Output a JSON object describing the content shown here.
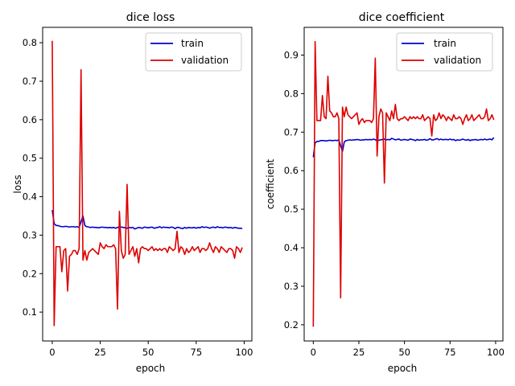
{
  "chart_data": [
    {
      "type": "line",
      "title": "dice loss",
      "xlabel": "epoch",
      "ylabel": "loss",
      "xlim": [
        -5,
        104
      ],
      "ylim": [
        0.025,
        0.84
      ],
      "xticks": [
        0,
        25,
        50,
        75,
        100
      ],
      "xtick_labels": [
        "0",
        "25",
        "50",
        "75",
        "100"
      ],
      "yticks": [
        0.1,
        0.2,
        0.3,
        0.4,
        0.5,
        0.6,
        0.7,
        0.8
      ],
      "ytick_labels": [
        "0.1",
        "0.2",
        "0.3",
        "0.4",
        "0.5",
        "0.6",
        "0.7",
        "0.8"
      ],
      "legend_position": "top-right",
      "grid": false,
      "series": [
        {
          "name": "train",
          "color": "#0000cc",
          "x": [
            0,
            1,
            2,
            3,
            4,
            5,
            6,
            7,
            8,
            9,
            10,
            11,
            12,
            13,
            14,
            15,
            16,
            17,
            18,
            19,
            20,
            21,
            22,
            23,
            24,
            25,
            26,
            27,
            28,
            29,
            30,
            31,
            32,
            33,
            34,
            35,
            36,
            37,
            38,
            39,
            40,
            41,
            42,
            43,
            44,
            45,
            46,
            47,
            48,
            49,
            50,
            51,
            52,
            53,
            54,
            55,
            56,
            57,
            58,
            59,
            60,
            61,
            62,
            63,
            64,
            65,
            66,
            67,
            68,
            69,
            70,
            71,
            72,
            73,
            74,
            75,
            76,
            77,
            78,
            79,
            80,
            81,
            82,
            83,
            84,
            85,
            86,
            87,
            88,
            89,
            90,
            91,
            92,
            93,
            94,
            95,
            96,
            97,
            98,
            99
          ],
          "values": [
            0.365,
            0.33,
            0.325,
            0.325,
            0.323,
            0.322,
            0.322,
            0.323,
            0.322,
            0.321,
            0.322,
            0.322,
            0.321,
            0.322,
            0.32,
            0.335,
            0.35,
            0.325,
            0.322,
            0.321,
            0.32,
            0.321,
            0.32,
            0.32,
            0.319,
            0.32,
            0.321,
            0.32,
            0.32,
            0.319,
            0.32,
            0.319,
            0.32,
            0.318,
            0.32,
            0.322,
            0.321,
            0.32,
            0.319,
            0.318,
            0.32,
            0.319,
            0.32,
            0.316,
            0.318,
            0.32,
            0.319,
            0.318,
            0.321,
            0.32,
            0.319,
            0.32,
            0.321,
            0.318,
            0.319,
            0.32,
            0.322,
            0.319,
            0.321,
            0.32,
            0.32,
            0.319,
            0.321,
            0.32,
            0.317,
            0.32,
            0.32,
            0.318,
            0.317,
            0.32,
            0.318,
            0.32,
            0.319,
            0.319,
            0.32,
            0.318,
            0.32,
            0.319,
            0.322,
            0.32,
            0.321,
            0.32,
            0.318,
            0.32,
            0.321,
            0.319,
            0.322,
            0.32,
            0.32,
            0.319,
            0.321,
            0.32,
            0.319,
            0.32,
            0.318,
            0.32,
            0.319,
            0.318,
            0.318,
            0.317
          ]
        },
        {
          "name": "validation",
          "color": "#dd0000",
          "x": [
            0,
            1,
            2,
            3,
            4,
            5,
            6,
            7,
            8,
            9,
            10,
            11,
            12,
            13,
            14,
            15,
            16,
            17,
            18,
            19,
            20,
            21,
            22,
            23,
            24,
            25,
            26,
            27,
            28,
            29,
            30,
            31,
            32,
            33,
            34,
            35,
            36,
            37,
            38,
            39,
            40,
            41,
            42,
            43,
            44,
            45,
            46,
            47,
            48,
            49,
            50,
            51,
            52,
            53,
            54,
            55,
            56,
            57,
            58,
            59,
            60,
            61,
            62,
            63,
            64,
            65,
            66,
            67,
            68,
            69,
            70,
            71,
            72,
            73,
            74,
            75,
            76,
            77,
            78,
            79,
            80,
            81,
            82,
            83,
            84,
            85,
            86,
            87,
            88,
            89,
            90,
            91,
            92,
            93,
            94,
            95,
            96,
            97,
            98,
            99
          ],
          "values": [
            0.805,
            0.065,
            0.27,
            0.27,
            0.27,
            0.205,
            0.26,
            0.265,
            0.155,
            0.245,
            0.25,
            0.26,
            0.26,
            0.25,
            0.265,
            0.73,
            0.235,
            0.26,
            0.235,
            0.255,
            0.26,
            0.265,
            0.26,
            0.255,
            0.25,
            0.28,
            0.27,
            0.265,
            0.275,
            0.27,
            0.27,
            0.27,
            0.275,
            0.265,
            0.108,
            0.362,
            0.26,
            0.24,
            0.25,
            0.432,
            0.25,
            0.26,
            0.27,
            0.245,
            0.265,
            0.228,
            0.265,
            0.27,
            0.265,
            0.265,
            0.26,
            0.265,
            0.27,
            0.26,
            0.265,
            0.26,
            0.265,
            0.26,
            0.265,
            0.265,
            0.255,
            0.27,
            0.265,
            0.26,
            0.265,
            0.31,
            0.255,
            0.27,
            0.265,
            0.25,
            0.265,
            0.255,
            0.26,
            0.27,
            0.26,
            0.265,
            0.27,
            0.255,
            0.265,
            0.265,
            0.26,
            0.265,
            0.28,
            0.265,
            0.255,
            0.27,
            0.265,
            0.255,
            0.27,
            0.265,
            0.26,
            0.255,
            0.265,
            0.265,
            0.26,
            0.24,
            0.27,
            0.265,
            0.255,
            0.268
          ]
        }
      ]
    },
    {
      "type": "line",
      "title": "dice coefficient",
      "xlabel": "epoch",
      "ylabel": "coefficient",
      "xlim": [
        -5,
        104
      ],
      "ylim": [
        0.158,
        0.972
      ],
      "xticks": [
        0,
        25,
        50,
        75,
        100
      ],
      "xtick_labels": [
        "0",
        "25",
        "50",
        "75",
        "100"
      ],
      "yticks": [
        0.2,
        0.3,
        0.4,
        0.5,
        0.6,
        0.7,
        0.8,
        0.9
      ],
      "ytick_labels": [
        "0.2",
        "0.3",
        "0.4",
        "0.5",
        "0.6",
        "0.7",
        "0.8",
        "0.9"
      ],
      "legend_position": "top-right",
      "grid": false,
      "series": [
        {
          "name": "train",
          "color": "#0000cc",
          "x": [
            0,
            1,
            2,
            3,
            4,
            5,
            6,
            7,
            8,
            9,
            10,
            11,
            12,
            13,
            14,
            15,
            16,
            17,
            18,
            19,
            20,
            21,
            22,
            23,
            24,
            25,
            26,
            27,
            28,
            29,
            30,
            31,
            32,
            33,
            34,
            35,
            36,
            37,
            38,
            39,
            40,
            41,
            42,
            43,
            44,
            45,
            46,
            47,
            48,
            49,
            50,
            51,
            52,
            53,
            54,
            55,
            56,
            57,
            58,
            59,
            60,
            61,
            62,
            63,
            64,
            65,
            66,
            67,
            68,
            69,
            70,
            71,
            72,
            73,
            74,
            75,
            76,
            77,
            78,
            79,
            80,
            81,
            82,
            83,
            84,
            85,
            86,
            87,
            88,
            89,
            90,
            91,
            92,
            93,
            94,
            95,
            96,
            97,
            98,
            99
          ],
          "values": [
            0.635,
            0.672,
            0.676,
            0.676,
            0.678,
            0.678,
            0.678,
            0.677,
            0.678,
            0.679,
            0.678,
            0.678,
            0.679,
            0.678,
            0.68,
            0.665,
            0.65,
            0.675,
            0.678,
            0.679,
            0.68,
            0.679,
            0.68,
            0.68,
            0.681,
            0.68,
            0.679,
            0.68,
            0.68,
            0.681,
            0.68,
            0.681,
            0.68,
            0.682,
            0.68,
            0.678,
            0.679,
            0.68,
            0.681,
            0.682,
            0.68,
            0.681,
            0.68,
            0.684,
            0.682,
            0.68,
            0.681,
            0.682,
            0.679,
            0.68,
            0.681,
            0.68,
            0.679,
            0.682,
            0.681,
            0.68,
            0.678,
            0.681,
            0.679,
            0.68,
            0.68,
            0.681,
            0.679,
            0.68,
            0.683,
            0.68,
            0.68,
            0.682,
            0.683,
            0.68,
            0.682,
            0.68,
            0.681,
            0.681,
            0.68,
            0.682,
            0.68,
            0.681,
            0.678,
            0.68,
            0.679,
            0.68,
            0.682,
            0.68,
            0.679,
            0.681,
            0.678,
            0.68,
            0.68,
            0.681,
            0.679,
            0.68,
            0.681,
            0.68,
            0.682,
            0.68,
            0.681,
            0.682,
            0.68,
            0.686
          ]
        },
        {
          "name": "validation",
          "color": "#dd0000",
          "x": [
            0,
            1,
            2,
            3,
            4,
            5,
            6,
            7,
            8,
            9,
            10,
            11,
            12,
            13,
            14,
            15,
            16,
            17,
            18,
            19,
            20,
            21,
            22,
            23,
            24,
            25,
            26,
            27,
            28,
            29,
            30,
            31,
            32,
            33,
            34,
            35,
            36,
            37,
            38,
            39,
            40,
            41,
            42,
            43,
            44,
            45,
            46,
            47,
            48,
            49,
            50,
            51,
            52,
            53,
            54,
            55,
            56,
            57,
            58,
            59,
            60,
            61,
            62,
            63,
            64,
            65,
            66,
            67,
            68,
            69,
            70,
            71,
            72,
            73,
            74,
            75,
            76,
            77,
            78,
            79,
            80,
            81,
            82,
            83,
            84,
            85,
            86,
            87,
            88,
            89,
            90,
            91,
            92,
            93,
            94,
            95,
            96,
            97,
            98,
            99
          ],
          "values": [
            0.195,
            0.935,
            0.73,
            0.73,
            0.73,
            0.795,
            0.74,
            0.735,
            0.845,
            0.755,
            0.75,
            0.74,
            0.74,
            0.75,
            0.735,
            0.27,
            0.765,
            0.74,
            0.765,
            0.745,
            0.74,
            0.735,
            0.74,
            0.745,
            0.75,
            0.72,
            0.73,
            0.735,
            0.725,
            0.73,
            0.73,
            0.73,
            0.725,
            0.735,
            0.892,
            0.638,
            0.74,
            0.76,
            0.75,
            0.568,
            0.75,
            0.74,
            0.73,
            0.755,
            0.735,
            0.772,
            0.735,
            0.73,
            0.735,
            0.735,
            0.74,
            0.735,
            0.73,
            0.74,
            0.735,
            0.74,
            0.735,
            0.74,
            0.735,
            0.735,
            0.745,
            0.73,
            0.735,
            0.74,
            0.735,
            0.69,
            0.745,
            0.73,
            0.735,
            0.75,
            0.735,
            0.745,
            0.74,
            0.73,
            0.74,
            0.735,
            0.73,
            0.745,
            0.735,
            0.735,
            0.74,
            0.735,
            0.72,
            0.735,
            0.745,
            0.73,
            0.735,
            0.745,
            0.73,
            0.735,
            0.74,
            0.745,
            0.735,
            0.735,
            0.74,
            0.76,
            0.73,
            0.735,
            0.745,
            0.732
          ]
        }
      ]
    }
  ]
}
